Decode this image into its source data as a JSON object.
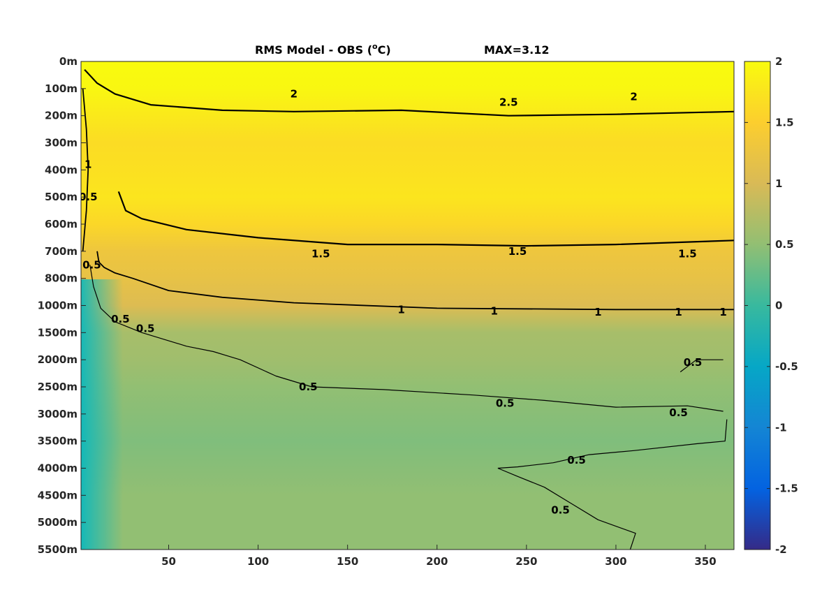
{
  "chart_data": {
    "type": "heatmap",
    "title": "RMS Model - OBS (oC)",
    "title_parts": {
      "main": "RMS Model - OBS (",
      "superscript": "o",
      "unit": "C)"
    },
    "max_label": "MAX=3.12",
    "x_ticks": [
      50,
      100,
      150,
      200,
      250,
      300,
      350
    ],
    "x_range": [
      1,
      366
    ],
    "y_ticks": [
      "0m",
      "100m",
      "200m",
      "300m",
      "400m",
      "500m",
      "600m",
      "700m",
      "800m",
      "1000m",
      "1500m",
      "2000m",
      "2500m",
      "3000m",
      "3500m",
      "4000m",
      "4500m",
      "5000m",
      "5500m"
    ],
    "colorbar": {
      "range": [
        -2,
        2
      ],
      "ticks": [
        2,
        1.5,
        1,
        0.5,
        0,
        -0.5,
        -1,
        -1.5,
        -2
      ],
      "colormap": "parula",
      "colors": [
        "#352a87",
        "#0363e1",
        "#1485d4",
        "#06a7c6",
        "#38b99e",
        "#92bf73",
        "#d9ba56",
        "#fcce2e",
        "#f9fb0e"
      ]
    },
    "depth_rms_profile": [
      {
        "depth": "0m",
        "rms": 2.05
      },
      {
        "depth": "100m",
        "rms": 1.95
      },
      {
        "depth": "200m",
        "rms": 1.8
      },
      {
        "depth": "300m",
        "rms": 1.65
      },
      {
        "depth": "400m",
        "rms": 1.7
      },
      {
        "depth": "500m",
        "rms": 1.75
      },
      {
        "depth": "600m",
        "rms": 1.6
      },
      {
        "depth": "700m",
        "rms": 1.3
      },
      {
        "depth": "800m",
        "rms": 1.2
      },
      {
        "depth": "1000m",
        "rms": 1.05
      },
      {
        "depth": "1500m",
        "rms": 0.65
      },
      {
        "depth": "2000m",
        "rms": 0.6
      },
      {
        "depth": "2500m",
        "rms": 0.5
      },
      {
        "depth": "3000m",
        "rms": 0.45
      },
      {
        "depth": "3500m",
        "rms": 0.4
      },
      {
        "depth": "4000m",
        "rms": 0.45
      },
      {
        "depth": "4500m",
        "rms": 0.5
      },
      {
        "depth": "5000m",
        "rms": 0.5
      },
      {
        "depth": "5500m",
        "rms": 0.5
      }
    ],
    "contour_labels": [
      "0.5",
      "1",
      "1.5",
      "2"
    ],
    "contours": [
      {
        "level": 1,
        "points": [
          [
            10,
            7.0
          ],
          [
            11,
            7.4
          ],
          [
            14,
            7.6
          ],
          [
            20,
            7.8
          ],
          [
            30,
            8.0
          ],
          [
            50,
            8.45
          ],
          [
            80,
            8.7
          ],
          [
            120,
            8.9
          ],
          [
            200,
            9.1
          ],
          [
            300,
            9.15
          ],
          [
            366,
            9.15
          ]
        ]
      },
      {
        "level": 1.5,
        "points": [
          [
            22,
            4.8
          ],
          [
            26,
            5.5
          ],
          [
            35,
            5.8
          ],
          [
            60,
            6.2
          ],
          [
            100,
            6.5
          ],
          [
            150,
            6.75
          ],
          [
            200,
            6.75
          ],
          [
            250,
            6.8
          ],
          [
            300,
            6.75
          ],
          [
            366,
            6.6
          ]
        ]
      },
      {
        "level": 0.5,
        "points": [
          [
            6,
            7.5
          ],
          [
            8,
            8.3
          ],
          [
            12,
            9.1
          ],
          [
            20,
            9.6
          ],
          [
            35,
            10.0
          ],
          [
            60,
            10.5
          ],
          [
            75,
            10.7
          ],
          [
            90,
            11.0
          ],
          [
            110,
            11.6
          ],
          [
            130,
            12.0
          ],
          [
            170,
            12.1
          ],
          [
            220,
            12.3
          ],
          [
            260,
            12.5
          ],
          [
            300,
            12.75
          ],
          [
            340,
            12.7
          ],
          [
            360,
            12.9
          ]
        ]
      },
      {
        "level": 0.5,
        "points": [
          [
            234,
            15.0
          ],
          [
            245,
            14.95
          ],
          [
            265,
            14.8
          ],
          [
            285,
            14.5
          ],
          [
            310,
            14.35
          ],
          [
            345,
            14.1
          ],
          [
            361,
            14.0
          ],
          [
            362,
            13.2
          ]
        ]
      },
      {
        "level": 0.5,
        "points": [
          [
            234,
            15.0
          ],
          [
            245,
            15.3
          ],
          [
            260,
            15.7
          ],
          [
            275,
            16.3
          ],
          [
            290,
            16.9
          ],
          [
            311,
            17.4
          ],
          [
            308,
            18.0
          ]
        ]
      },
      {
        "level": 0.5,
        "points": [
          [
            336,
            11.45
          ],
          [
            345,
            11.0
          ],
          [
            360,
            11.0
          ]
        ]
      },
      {
        "level": 2,
        "points": [
          [
            3,
            0.3
          ],
          [
            10,
            0.8
          ],
          [
            20,
            1.2
          ],
          [
            40,
            1.6
          ],
          [
            80,
            1.8
          ],
          [
            120,
            1.85
          ],
          [
            180,
            1.8
          ],
          [
            240,
            2.0
          ],
          [
            300,
            1.95
          ],
          [
            366,
            1.85
          ]
        ]
      },
      {
        "level": 1,
        "points": [
          [
            2,
            1.0
          ],
          [
            4,
            2.5
          ],
          [
            5,
            4.0
          ],
          [
            4,
            5.5
          ],
          [
            2,
            7.0
          ]
        ]
      }
    ],
    "contour_text_marks": [
      {
        "x": 128,
        "y": 12.0,
        "text": "0.5"
      },
      {
        "x": 238,
        "y": 12.6,
        "text": "0.5"
      },
      {
        "x": 335,
        "y": 12.95,
        "text": "0.5"
      },
      {
        "x": 278,
        "y": 14.7,
        "text": "0.5"
      },
      {
        "x": 269,
        "y": 16.55,
        "text": "0.5"
      },
      {
        "x": 343,
        "y": 11.1,
        "text": "0.5"
      },
      {
        "x": 23,
        "y": 9.5,
        "text": "0.5"
      },
      {
        "x": 37,
        "y": 9.85,
        "text": "0.5"
      },
      {
        "x": 5,
        "y": 5.0,
        "text": "0.5"
      },
      {
        "x": 7,
        "y": 7.5,
        "text": "0.5"
      },
      {
        "x": 180,
        "y": 9.15,
        "text": "1"
      },
      {
        "x": 290,
        "y": 9.25,
        "text": "1"
      },
      {
        "x": 335,
        "y": 9.25,
        "text": "1"
      },
      {
        "x": 360,
        "y": 9.25,
        "text": "1"
      },
      {
        "x": 232,
        "y": 9.2,
        "text": "1"
      },
      {
        "x": 135,
        "y": 7.1,
        "text": "1.5"
      },
      {
        "x": 245,
        "y": 7.0,
        "text": "1.5"
      },
      {
        "x": 340,
        "y": 7.1,
        "text": "1.5"
      },
      {
        "x": 5,
        "y": 3.8,
        "text": "1"
      },
      {
        "x": 120,
        "y": 1.2,
        "text": "2"
      },
      {
        "x": 240,
        "y": 1.5,
        "text": "2.5"
      },
      {
        "x": 310,
        "y": 1.3,
        "text": "2"
      }
    ]
  }
}
